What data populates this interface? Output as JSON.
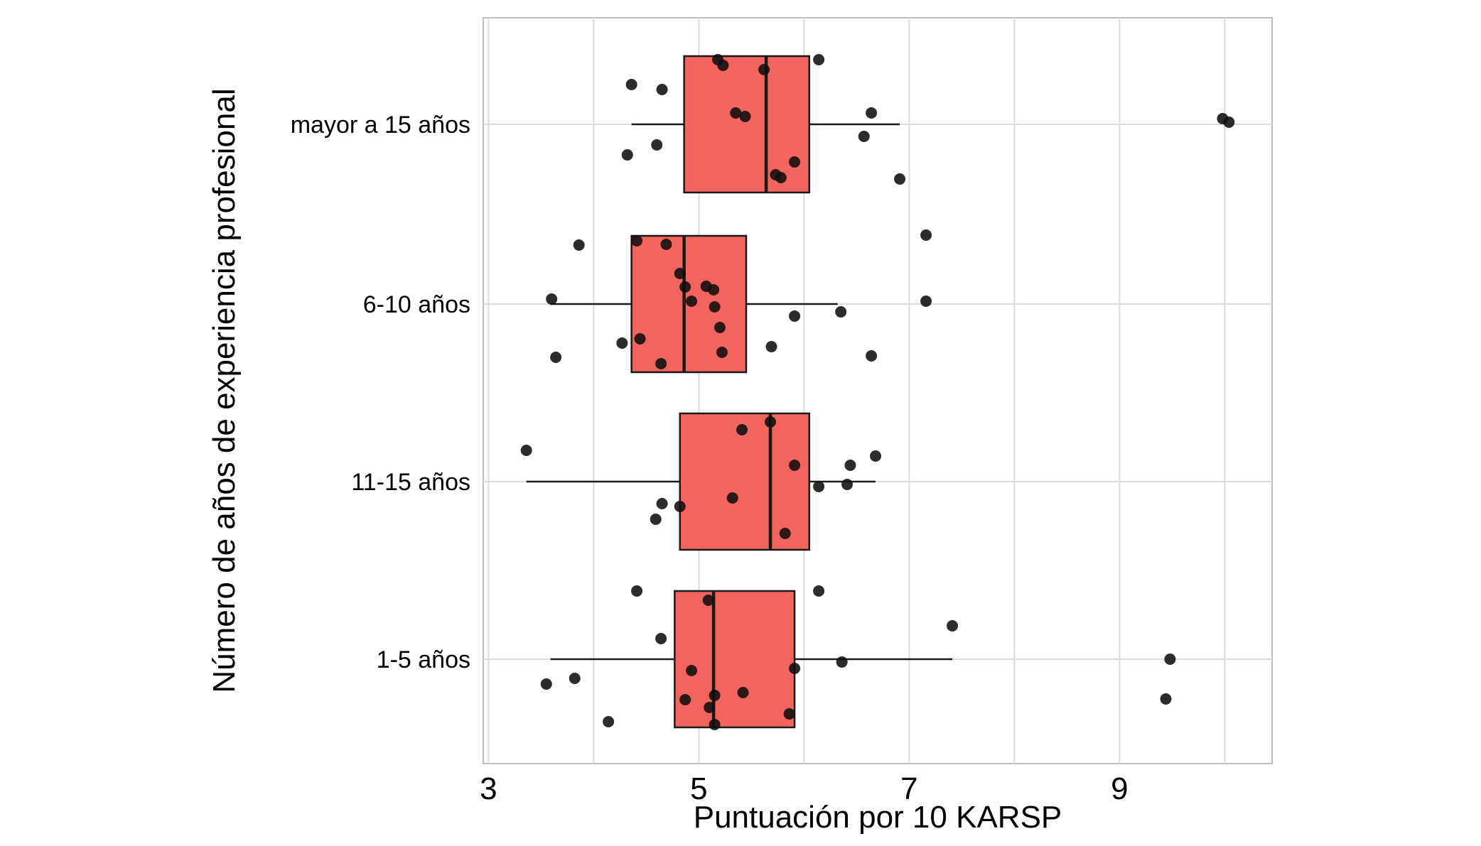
{
  "chart_data": {
    "type": "boxplot",
    "orientation": "horizontal",
    "title": "",
    "xlabel": "Puntuación por 10 KARSP",
    "ylabel": "Número de años de experiencia profesional",
    "x_axis": {
      "min": 2.95,
      "max": 10.45,
      "major_ticks": [
        3,
        5,
        7,
        9
      ],
      "gridlines": [
        3,
        4,
        5,
        6,
        7,
        8,
        9,
        10
      ]
    },
    "colors": {
      "box_fill": "#F4645E",
      "box_stroke": "#1a1a1a",
      "median": "#1a1a1a",
      "whisker": "#1a1a1a",
      "point": "#0f0f0f",
      "grid": "#dcdcdc",
      "panel_border": "#bdbdbd",
      "background": "#ffffff",
      "text": "#000000"
    },
    "legend": "none",
    "grid": "on",
    "groups": [
      {
        "label": "mayor a 15 años",
        "whisker_low": 4.36,
        "q1": 4.86,
        "median": 5.64,
        "q3": 6.05,
        "whisker_high": 6.91,
        "points": [
          [
            5.18,
            -0.91
          ],
          [
            5.23,
            -0.83
          ],
          [
            6.14,
            -0.91
          ],
          [
            4.36,
            -0.56
          ],
          [
            4.65,
            -0.49
          ],
          [
            5.62,
            -0.77
          ],
          [
            5.35,
            -0.16
          ],
          [
            5.44,
            -0.11
          ],
          [
            6.64,
            -0.16
          ],
          [
            9.98,
            -0.08
          ],
          [
            10.04,
            -0.03
          ],
          [
            4.32,
            0.43
          ],
          [
            4.6,
            0.29
          ],
          [
            6.57,
            0.17
          ],
          [
            5.73,
            0.71
          ],
          [
            5.91,
            0.53
          ],
          [
            5.78,
            0.75
          ],
          [
            6.91,
            0.77
          ]
        ]
      },
      {
        "label": "6-10 años",
        "whisker_low": 3.59,
        "q1": 4.36,
        "median": 4.86,
        "q3": 5.45,
        "whisker_high": 6.32,
        "points": [
          [
            7.16,
            -0.97
          ],
          [
            3.86,
            -0.83
          ],
          [
            4.41,
            -0.89
          ],
          [
            4.69,
            -0.84
          ],
          [
            4.82,
            -0.43
          ],
          [
            5.07,
            -0.25
          ],
          [
            5.14,
            -0.2
          ],
          [
            4.87,
            -0.24
          ],
          [
            4.93,
            -0.04
          ],
          [
            5.15,
            0.04
          ],
          [
            3.6,
            -0.07
          ],
          [
            5.91,
            0.17
          ],
          [
            6.35,
            0.11
          ],
          [
            7.16,
            -0.04
          ],
          [
            5.2,
            0.33
          ],
          [
            4.27,
            0.55
          ],
          [
            4.44,
            0.49
          ],
          [
            5.22,
            0.68
          ],
          [
            5.69,
            0.6
          ],
          [
            6.64,
            0.73
          ],
          [
            3.64,
            0.75
          ],
          [
            4.64,
            0.84
          ]
        ]
      },
      {
        "label": "11-15 años",
        "whisker_low": 3.36,
        "q1": 4.82,
        "median": 5.68,
        "q3": 6.05,
        "whisker_high": 6.68,
        "points": [
          [
            5.41,
            -0.73
          ],
          [
            5.68,
            -0.84
          ],
          [
            3.36,
            -0.44
          ],
          [
            5.91,
            -0.23
          ],
          [
            6.68,
            -0.36
          ],
          [
            6.44,
            -0.23
          ],
          [
            6.14,
            0.07
          ],
          [
            6.41,
            0.04
          ],
          [
            5.32,
            0.23
          ],
          [
            4.65,
            0.31
          ],
          [
            4.82,
            0.35
          ],
          [
            4.59,
            0.53
          ],
          [
            5.82,
            0.73
          ]
        ]
      },
      {
        "label": "1-5 años",
        "whisker_low": 3.59,
        "q1": 4.77,
        "median": 5.14,
        "q3": 5.91,
        "whisker_high": 7.41,
        "points": [
          [
            4.41,
            -0.96
          ],
          [
            6.14,
            -0.96
          ],
          [
            5.09,
            -0.83
          ],
          [
            7.41,
            -0.47
          ],
          [
            4.64,
            -0.29
          ],
          [
            6.36,
            0.04
          ],
          [
            9.48,
            0.0
          ],
          [
            3.82,
            0.27
          ],
          [
            4.93,
            0.16
          ],
          [
            3.55,
            0.35
          ],
          [
            5.91,
            0.13
          ],
          [
            5.15,
            0.51
          ],
          [
            5.42,
            0.47
          ],
          [
            9.44,
            0.56
          ],
          [
            4.87,
            0.57
          ],
          [
            5.1,
            0.68
          ],
          [
            5.86,
            0.77
          ],
          [
            4.14,
            0.88
          ],
          [
            5.15,
            0.92
          ]
        ]
      }
    ]
  }
}
